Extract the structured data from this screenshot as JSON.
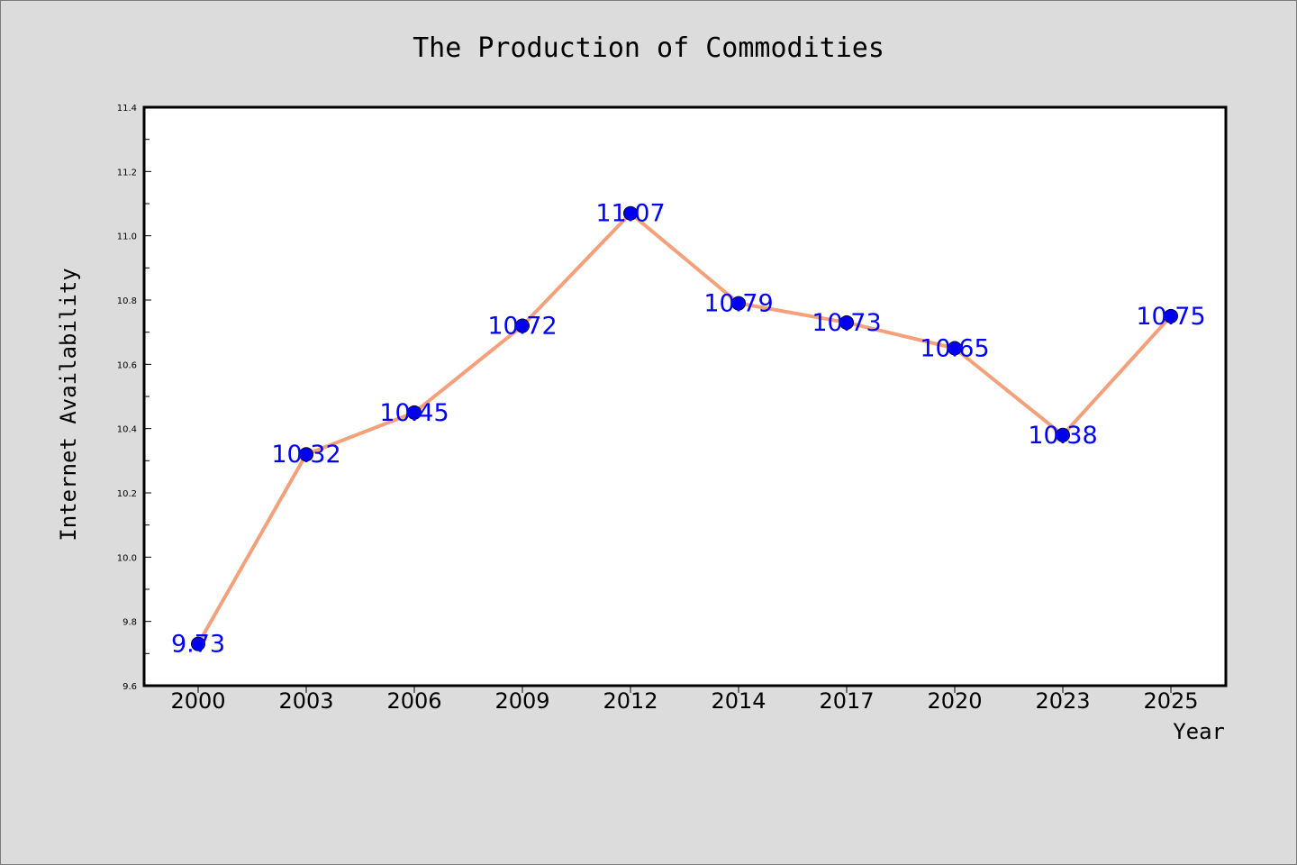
{
  "chart_data": {
    "type": "line",
    "title": "The Production of Commodities",
    "xlabel": "Year",
    "ylabel": "Internet Availability",
    "categories": [
      "2000",
      "2003",
      "2006",
      "2009",
      "2012",
      "2014",
      "2017",
      "2020",
      "2023",
      "2025"
    ],
    "series": [
      {
        "values": [
          9.73,
          10.32,
          10.45,
          10.72,
          11.07,
          10.79,
          10.73,
          10.65,
          10.38,
          10.75
        ]
      }
    ],
    "data_labels": [
      "9.73",
      "10.32",
      "10.45",
      "10.72",
      "11.07",
      "10.79",
      "10.73",
      "10.65",
      "10.38",
      "10.75"
    ],
    "ylim": [
      9.6,
      11.4
    ],
    "yticks": [
      "9.6",
      "9.8",
      "10.0",
      "10.2",
      "10.4",
      "10.6",
      "10.8",
      "11.0",
      "11.2",
      "11.4"
    ],
    "grid": false,
    "legend": "none",
    "colors": {
      "line": "#f4a07a",
      "marker": "#0000ee",
      "data_label": "#0000ff",
      "background": "#dcdcdc",
      "plot_area": "#ffffff"
    }
  }
}
